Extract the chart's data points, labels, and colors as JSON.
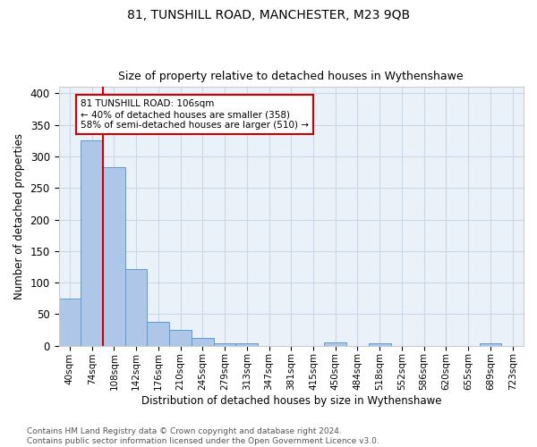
{
  "title1": "81, TUNSHILL ROAD, MANCHESTER, M23 9QB",
  "title2": "Size of property relative to detached houses in Wythenshawe",
  "xlabel": "Distribution of detached houses by size in Wythenshawe",
  "ylabel": "Number of detached properties",
  "bar_labels": [
    "40sqm",
    "74sqm",
    "108sqm",
    "142sqm",
    "176sqm",
    "210sqm",
    "245sqm",
    "279sqm",
    "313sqm",
    "347sqm",
    "381sqm",
    "415sqm",
    "450sqm",
    "484sqm",
    "518sqm",
    "552sqm",
    "586sqm",
    "620sqm",
    "655sqm",
    "689sqm",
    "723sqm"
  ],
  "bar_values": [
    75,
    325,
    283,
    122,
    38,
    25,
    13,
    4,
    4,
    0,
    0,
    0,
    5,
    0,
    4,
    0,
    0,
    0,
    0,
    4,
    0
  ],
  "bar_color": "#aec6e8",
  "bar_edge_color": "#5b9bd5",
  "highlight_bar_index": 2,
  "highlight_color": "#cc0000",
  "annotation_text": "81 TUNSHILL ROAD: 106sqm\n← 40% of detached houses are smaller (358)\n58% of semi-detached houses are larger (510) →",
  "annotation_box_color": "#ffffff",
  "annotation_box_edge": "#cc0000",
  "ylim": [
    0,
    410
  ],
  "yticks": [
    0,
    50,
    100,
    150,
    200,
    250,
    300,
    350,
    400
  ],
  "footer": "Contains HM Land Registry data © Crown copyright and database right 2024.\nContains public sector information licensed under the Open Government Licence v3.0.",
  "grid_color": "#c8d8e8",
  "bg_color": "#eaf1f8",
  "figsize": [
    6.0,
    5.0
  ],
  "dpi": 100
}
